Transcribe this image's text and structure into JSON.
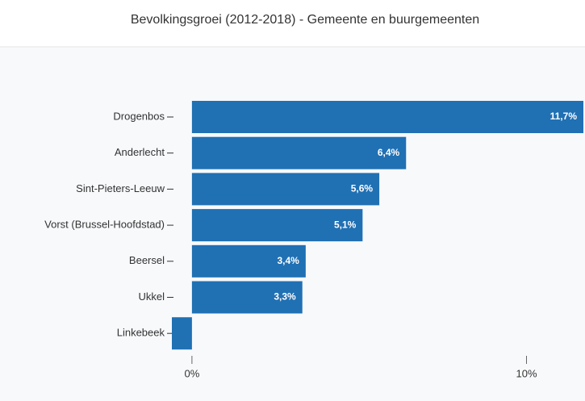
{
  "chart_data": {
    "type": "bar",
    "orientation": "horizontal",
    "title": "Bevolkingsgroei (2012-2018) - Gemeente en buurgemeenten",
    "categories": [
      "Drogenbos",
      "Anderlecht",
      "Sint-Pieters-Leeuw",
      "Vorst (Brussel-Hoofdstad)",
      "Beersel",
      "Ukkel",
      "Linkebeek"
    ],
    "values": [
      11.7,
      6.4,
      5.6,
      5.1,
      3.4,
      3.3,
      -0.6
    ],
    "value_labels": [
      "11,7%",
      "6,4%",
      "5,6%",
      "5,1%",
      "3,4%",
      "3,3%",
      null
    ],
    "color": "#2070b4",
    "xlim": [
      -0.6,
      11.7
    ],
    "xticks": [
      {
        "value": 0,
        "label": "0%"
      },
      {
        "value": 10,
        "label": "10%"
      }
    ]
  }
}
